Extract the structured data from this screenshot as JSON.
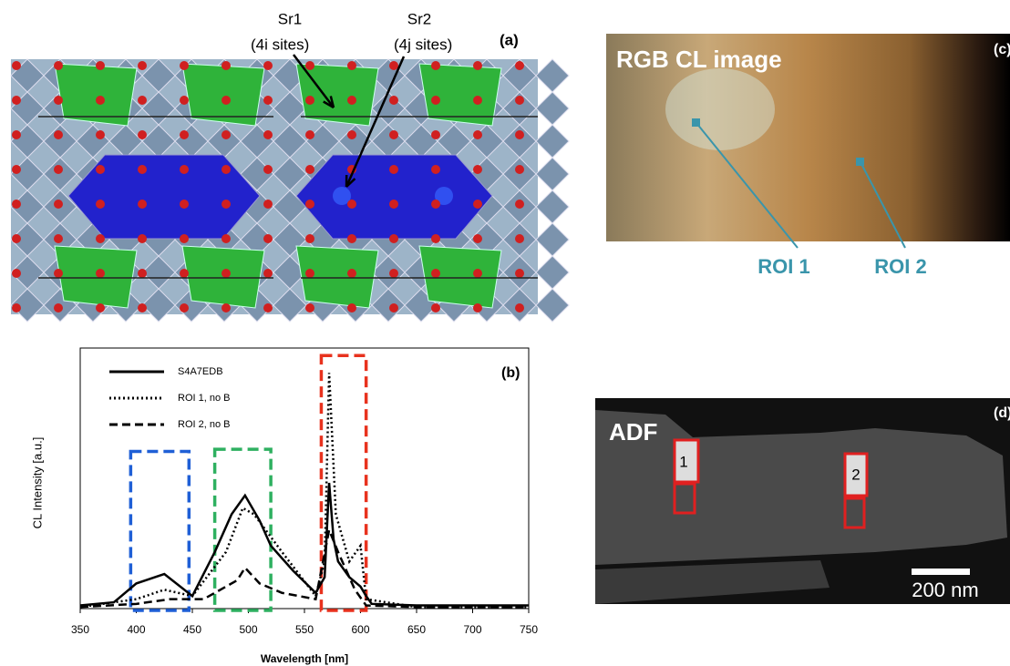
{
  "panel_a": {
    "label": "(a)",
    "sr1_name": "Sr1",
    "sr1_sites": "(4i sites)",
    "sr2_name": "Sr2",
    "sr2_sites": "(4j sites)"
  },
  "chart_data": {
    "type": "line",
    "label": "(b)",
    "x_label": "Wavelength [nm]",
    "y_label": "CL Intensity [a.u.]",
    "xlim": [
      350,
      750
    ],
    "xticks": [
      350,
      400,
      450,
      500,
      550,
      600,
      650,
      700,
      750
    ],
    "ylim": [
      0,
      8
    ],
    "series": [
      {
        "name": "S4A7EDB",
        "color": "#000000",
        "linestyle": "solid",
        "x": [
          350,
          380,
          400,
          425,
          450,
          470,
          485,
          497,
          510,
          520,
          540,
          560,
          568,
          572,
          576,
          580,
          590,
          600,
          605,
          610,
          650,
          700,
          750
        ],
        "values": [
          0.1,
          0.2,
          0.8,
          1.1,
          0.4,
          1.8,
          3.0,
          3.6,
          2.8,
          2.0,
          1.2,
          0.5,
          1.0,
          4.0,
          2.2,
          1.5,
          1.0,
          0.7,
          0.4,
          0.15,
          0.1,
          0.1,
          0.1
        ]
      },
      {
        "name": "ROI 1, no B",
        "color": "#000000",
        "linestyle": "dotted",
        "x": [
          350,
          400,
          425,
          450,
          480,
          495,
          505,
          530,
          560,
          568,
          572,
          578,
          590,
          600,
          605,
          650,
          750
        ],
        "values": [
          0.05,
          0.3,
          0.6,
          0.4,
          1.8,
          3.2,
          3.0,
          1.8,
          0.4,
          1.5,
          7.5,
          3.0,
          1.5,
          2.0,
          0.3,
          0.05,
          0.05
        ]
      },
      {
        "name": "ROI 2, no B",
        "color": "#000000",
        "linestyle": "dashed",
        "x": [
          350,
          400,
          430,
          460,
          490,
          497,
          510,
          530,
          560,
          572,
          580,
          595,
          605,
          650,
          750
        ],
        "values": [
          0.05,
          0.15,
          0.3,
          0.3,
          0.9,
          1.3,
          0.8,
          0.5,
          0.3,
          2.5,
          1.8,
          0.6,
          0.1,
          0.05,
          0.05
        ]
      }
    ],
    "highlights": [
      {
        "range": [
          395,
          447
        ],
        "top": 5.0,
        "color": "#1f5fd6"
      },
      {
        "range": [
          470,
          520
        ],
        "top": 5.07,
        "color": "#2eb060"
      },
      {
        "range": [
          565,
          605
        ],
        "top": 8.05,
        "color": "#e8321e"
      }
    ]
  },
  "panel_c": {
    "label": "(c)",
    "title": "RGB CL image",
    "roi1": "ROI 1",
    "roi2": "ROI 2"
  },
  "panel_d": {
    "label": "(d)",
    "title": "ADF",
    "box1": "1",
    "box2": "2",
    "scale": "200 nm"
  }
}
